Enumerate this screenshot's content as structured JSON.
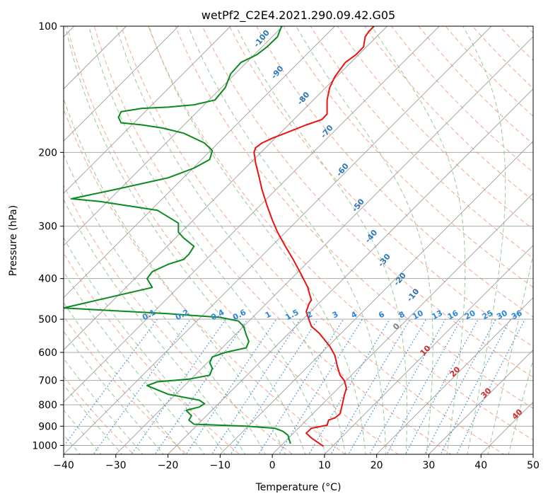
{
  "chart_data": {
    "type": "line",
    "title": "wetPf2_C2E4.2021.290.09.42.G05",
    "xlabel": "Temperature (°C)",
    "ylabel": "Pressure (hPa)",
    "xlim": [
      -40,
      50
    ],
    "ylim": [
      1050,
      100
    ],
    "y_scale": "log",
    "grid": true,
    "x_ticks": [
      -40,
      -30,
      -20,
      -10,
      0,
      10,
      20,
      30,
      40,
      50
    ],
    "y_ticks": [
      1000,
      900,
      800,
      700,
      600,
      500,
      400,
      300,
      200,
      100
    ],
    "series": [
      {
        "role": "temperature",
        "color": "#e8120f",
        "points": [
          [
            9.8,
            1005
          ],
          [
            7.5,
            960
          ],
          [
            6.5,
            935
          ],
          [
            7.5,
            910
          ],
          [
            10.5,
            895
          ],
          [
            10.8,
            870
          ],
          [
            12.0,
            860
          ],
          [
            13.0,
            840
          ],
          [
            13.5,
            790
          ],
          [
            13.8,
            760
          ],
          [
            14.2,
            730
          ],
          [
            13.8,
            700
          ],
          [
            13.0,
            680
          ],
          [
            12.5,
            650
          ],
          [
            12.0,
            610
          ],
          [
            11.0,
            580
          ],
          [
            9.0,
            540
          ],
          [
            7.5,
            520
          ],
          [
            7.0,
            500
          ],
          [
            6.5,
            480
          ],
          [
            7.0,
            460
          ],
          [
            7.5,
            450
          ],
          [
            7.0,
            430
          ],
          [
            6.8,
            420
          ],
          [
            5.5,
            390
          ],
          [
            4.0,
            360
          ],
          [
            2.5,
            335
          ],
          [
            1.0,
            310
          ],
          [
            0.0,
            290
          ],
          [
            -1.0,
            268
          ],
          [
            -2.0,
            245
          ],
          [
            -2.5,
            230
          ],
          [
            -3.2,
            212
          ],
          [
            -3.5,
            200
          ],
          [
            -3.2,
            195
          ],
          [
            -2.0,
            190
          ],
          [
            0.0,
            185
          ],
          [
            2.5,
            180
          ],
          [
            6.5,
            172
          ],
          [
            9.5,
            167
          ],
          [
            10.5,
            162
          ],
          [
            10.5,
            150
          ],
          [
            11.0,
            140
          ],
          [
            12.0,
            132
          ],
          [
            14.0,
            122
          ],
          [
            16.0,
            117
          ],
          [
            17.5,
            112
          ],
          [
            17.8,
            106
          ],
          [
            18.5,
            103
          ],
          [
            19.5,
            100
          ]
        ]
      },
      {
        "role": "dewpoint",
        "color": "#0a8a1f",
        "points": [
          [
            3.5,
            990
          ],
          [
            3.2,
            965
          ],
          [
            3.0,
            945
          ],
          [
            2.0,
            925
          ],
          [
            0.5,
            910
          ],
          [
            -5.0,
            900
          ],
          [
            -15.0,
            890
          ],
          [
            -16.0,
            870
          ],
          [
            -15.5,
            850
          ],
          [
            -16.5,
            825
          ],
          [
            -14.0,
            810
          ],
          [
            -13.0,
            795
          ],
          [
            -14.0,
            780
          ],
          [
            -20.0,
            755
          ],
          [
            -24.0,
            720
          ],
          [
            -22.0,
            705
          ],
          [
            -16.0,
            695
          ],
          [
            -12.0,
            680
          ],
          [
            -11.5,
            655
          ],
          [
            -12.0,
            635
          ],
          [
            -11.5,
            615
          ],
          [
            -9.0,
            600
          ],
          [
            -5.0,
            585
          ],
          [
            -4.5,
            565
          ],
          [
            -5.0,
            545
          ],
          [
            -5.5,
            520
          ],
          [
            -6.5,
            505
          ],
          [
            -10.0,
            495
          ],
          [
            -20.0,
            485
          ],
          [
            -40.0,
            470
          ],
          [
            -23.0,
            420
          ],
          [
            -24.0,
            400
          ],
          [
            -23.0,
            385
          ],
          [
            -20.0,
            370
          ],
          [
            -17.0,
            360
          ],
          [
            -16.0,
            350
          ],
          [
            -15.0,
            335
          ],
          [
            -17.0,
            320
          ],
          [
            -18.0,
            310
          ],
          [
            -18.0,
            295
          ],
          [
            -22.0,
            275
          ],
          [
            -33.0,
            262
          ],
          [
            -38.5,
            258
          ],
          [
            -30.0,
            245
          ],
          [
            -20.0,
            230
          ],
          [
            -15.0,
            218
          ],
          [
            -12.0,
            208
          ],
          [
            -11.5,
            198
          ],
          [
            -13.0,
            190
          ],
          [
            -17.0,
            180
          ],
          [
            -21.0,
            175
          ],
          [
            -25.0,
            172
          ],
          [
            -29.0,
            170
          ],
          [
            -29.5,
            165
          ],
          [
            -29.0,
            160
          ],
          [
            -25.0,
            157
          ],
          [
            -20.0,
            156
          ],
          [
            -15.0,
            154
          ],
          [
            -11.0,
            150
          ],
          [
            -9.0,
            140
          ],
          [
            -8.0,
            130
          ],
          [
            -6.0,
            122
          ],
          [
            -3.0,
            117
          ],
          [
            -1.0,
            112
          ],
          [
            1.0,
            106
          ],
          [
            1.5,
            102
          ],
          [
            1.8,
            100
          ]
        ]
      }
    ],
    "dry_adiabat_labels": [
      "-100",
      "-90",
      "-80",
      "-70",
      "-60",
      "-50",
      "-40",
      "-30",
      "-20",
      "-10"
    ],
    "mixing_ratio_labels": [
      "0.1",
      "0.2",
      "0.4",
      "0.6",
      "1",
      "1.5",
      "2",
      "3",
      "4",
      "6",
      "8",
      "10",
      "13",
      "16",
      "20",
      "25",
      "30",
      "36"
    ],
    "moist_adiabat_labels": [
      "0",
      "10",
      "20",
      "30",
      "40"
    ],
    "colors": {
      "isotherm": "#9e9e9e",
      "isobar": "#9e9e9e",
      "dry_adiabat": "#f6a58a",
      "moist_adiabat": "#97c995",
      "mixing_ratio": "#2b86d9",
      "dry_label": "#2b78b8",
      "mixing_label": "#2b86d9",
      "moist_label": "#d62828",
      "moist_label_zero": "#808080"
    }
  }
}
